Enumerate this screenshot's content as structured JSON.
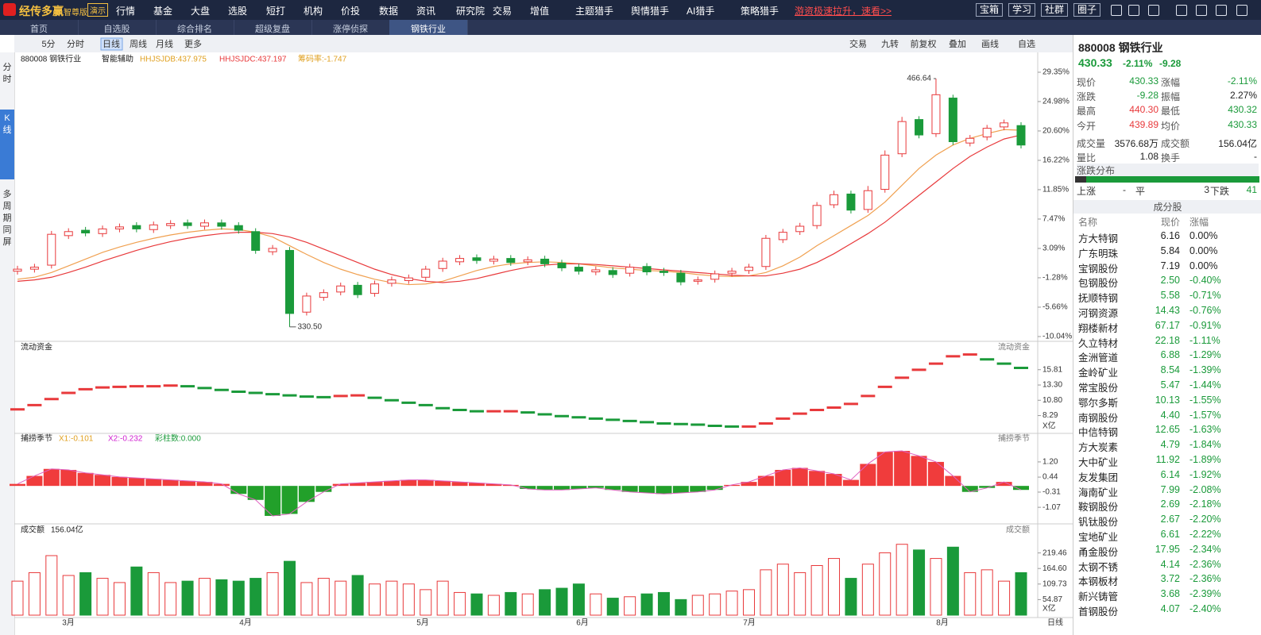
{
  "topbar": {
    "logo": "经传多赢",
    "edition": "智尊版",
    "demo": "演示",
    "menu": [
      "行情",
      "基金",
      "大盘",
      "选股",
      "短打",
      "机构",
      "价投",
      "数据",
      "资讯",
      "研究院",
      "交易",
      "增值",
      "主题猎手",
      "舆情猎手",
      "AI猎手",
      "策略猎手"
    ],
    "promo": "游资极速拉升，速看>>",
    "buttons": [
      "宝箱",
      "学习",
      "社群",
      "圈子"
    ],
    "zoom": "100%"
  },
  "tabs": {
    "items": [
      "首页",
      "自选股",
      "综合排名",
      "超级复盘",
      "涨停侦探",
      "钢铁行业"
    ],
    "active": 5
  },
  "sidebar": {
    "items": [
      "分时",
      "K线",
      "多周期同屏"
    ],
    "active": 1
  },
  "toolbar": {
    "left": [
      "5分",
      "分时",
      "日线",
      "周线",
      "月线",
      "更多"
    ],
    "active": 2,
    "right": [
      "交易",
      "九转",
      "前复权",
      "叠加",
      "画线",
      "自选"
    ]
  },
  "chart_data": [
    {
      "type": "candlestick",
      "title": "880008 钢铁行业",
      "assist": "智能辅助",
      "annotations": [
        "HHJSJDB:437.975",
        "HHJSJDC:437.197",
        "筹码率:-1.747"
      ],
      "high_label": "466.64",
      "low_label": "330.50",
      "ylim": [
        -10.04,
        29.35
      ],
      "yticks": [
        {
          "value": 29.35,
          "label": "29.35%"
        },
        {
          "value": 24.98,
          "label": "24.98%"
        },
        {
          "value": 20.6,
          "label": "20.60%"
        },
        {
          "value": 16.22,
          "label": "16.22%"
        },
        {
          "value": 11.85,
          "label": "11.85%"
        },
        {
          "value": 7.47,
          "label": "7.47%"
        },
        {
          "value": 3.09,
          "label": "3.09%"
        },
        {
          "value": -1.28,
          "label": "-1.28%"
        },
        {
          "value": -5.66,
          "label": "-5.66%"
        },
        {
          "value": -10.04,
          "label": "-10.04%"
        }
      ],
      "up_color": "#e8393b",
      "down_color": "#1a9a3a",
      "open": [
        -0.3,
        0.0,
        0.6,
        5.0,
        5.8,
        5.3,
        6.0,
        6.5,
        5.9,
        6.5,
        6.9,
        6.4,
        6.9,
        6.5,
        5.6,
        2.6,
        2.8,
        -6.4,
        -4.2,
        -3.4,
        -2.4,
        -3.6,
        -2.1,
        -1.7,
        -1.2,
        0.1,
        1.1,
        1.7,
        1.2,
        1.6,
        1.1,
        1.5,
        0.9,
        0.3,
        -0.4,
        -0.2,
        -0.6,
        0.4,
        -0.3,
        -0.6,
        -1.8,
        -1.5,
        -0.6,
        -0.2,
        0.4,
        4.4,
        5.6,
        6.5,
        9.6,
        11.2,
        8.9,
        11.9,
        17.2,
        22.3,
        20.2,
        25.5,
        18.8,
        19.7,
        21.2,
        21.4
      ],
      "high": [
        0.5,
        0.8,
        5.7,
        6.1,
        6.3,
        6.5,
        6.8,
        7.0,
        7.1,
        7.3,
        7.4,
        7.4,
        7.4,
        7.0,
        6.1,
        3.6,
        3.3,
        -3.5,
        -3.0,
        -2.0,
        -1.9,
        -1.7,
        -1.1,
        -0.8,
        0.5,
        1.7,
        2.1,
        2.2,
        2.0,
        2.1,
        1.9,
        2.0,
        1.4,
        0.8,
        0.4,
        0.3,
        0.8,
        0.9,
        0.2,
        -0.1,
        -1.1,
        -0.2,
        0.2,
        0.8,
        5.1,
        6.0,
        6.9,
        10.0,
        11.7,
        11.7,
        12.4,
        17.7,
        22.7,
        22.8,
        28.4,
        26.0,
        20.0,
        21.5,
        22.3,
        21.9
      ],
      "low": [
        -0.8,
        -0.5,
        0.1,
        4.5,
        4.9,
        4.8,
        5.5,
        5.5,
        5.4,
        6.0,
        6.0,
        5.9,
        5.9,
        5.3,
        2.3,
        2.1,
        -8.6,
        -6.9,
        -4.7,
        -3.9,
        -4.3,
        -4.1,
        -2.6,
        -2.2,
        -1.7,
        -0.4,
        0.6,
        0.8,
        0.7,
        0.5,
        0.6,
        0.3,
        -0.3,
        -0.8,
        -0.9,
        -1.3,
        -1.1,
        -0.9,
        -1.0,
        -2.4,
        -2.3,
        -2.0,
        -1.1,
        -0.7,
        -0.1,
        3.9,
        5.1,
        6.0,
        9.1,
        8.3,
        8.4,
        11.4,
        16.7,
        19.5,
        19.7,
        18.5,
        18.3,
        19.2,
        20.7,
        18.0
      ],
      "close": [
        0.0,
        0.3,
        5.2,
        5.6,
        5.4,
        6.0,
        6.3,
        6.0,
        6.6,
        6.8,
        6.5,
        6.9,
        6.4,
        5.8,
        2.8,
        3.1,
        -6.6,
        -4.0,
        -3.5,
        -2.5,
        -3.8,
        -2.2,
        -1.6,
        -1.3,
        0.0,
        1.2,
        1.6,
        1.3,
        1.5,
        1.0,
        1.4,
        0.8,
        0.2,
        -0.3,
        -0.1,
        -0.8,
        0.3,
        -0.4,
        -0.5,
        -1.9,
        -1.6,
        -0.7,
        -0.3,
        0.3,
        4.6,
        5.5,
        6.4,
        9.5,
        11.1,
        8.8,
        11.7,
        17.0,
        22.0,
        20.0,
        26.0,
        19.0,
        19.5,
        21.0,
        21.8,
        18.5
      ],
      "series": [
        {
          "color": "#f0a050",
          "values": [
            -1.5,
            -1.2,
            -0.5,
            0.5,
            1.5,
            2.5,
            3.3,
            4,
            4.6,
            5.1,
            5.5,
            5.8,
            6,
            5.9,
            5.5,
            4.8,
            3.5,
            2.2,
            1,
            0,
            -0.8,
            -1.5,
            -2,
            -2.3,
            -2.2,
            -1.8,
            -1,
            -0.2,
            0.4,
            0.8,
            1,
            1.1,
            1,
            0.8,
            0.5,
            0.2,
            0,
            -0.2,
            -0.3,
            -0.5,
            -0.8,
            -1,
            -1.1,
            -1,
            -0.5,
            0.5,
            1.8,
            3.5,
            5,
            6.5,
            8,
            10,
            12.5,
            15,
            17,
            18.5,
            19.5,
            20.2,
            20.8,
            20.7
          ]
        },
        {
          "color": "#e8393b",
          "values": [
            -1.8,
            -1.6,
            -1.2,
            -0.5,
            0.3,
            1.2,
            2,
            2.8,
            3.5,
            4.1,
            4.6,
            5,
            5.3,
            5.5,
            5.5,
            5.3,
            4.8,
            4,
            3,
            2,
            1,
            0,
            -0.8,
            -1.4,
            -1.8,
            -2,
            -1.8,
            -1.4,
            -0.8,
            -0.2,
            0.3,
            0.6,
            0.8,
            0.8,
            0.7,
            0.5,
            0.3,
            0.1,
            -0.1,
            -0.3,
            -0.5,
            -0.7,
            -0.9,
            -1,
            -1,
            -0.6,
            0,
            1,
            2.3,
            3.8,
            5.3,
            7,
            9,
            11,
            13,
            15,
            16.8,
            18.2,
            19.4,
            20.0
          ]
        }
      ]
    },
    {
      "type": "line",
      "title": "流动资金",
      "unit": "X亿",
      "ylim": [
        5.5,
        20.2
      ],
      "yticks": [
        15.81,
        {
          "value": 13.3,
          "label": "13.30"
        },
        {
          "value": 10.8,
          "label": "10.80"
        },
        8.29
      ],
      "up_color": "#e8393b",
      "down_color": "#1a9a3a",
      "values": [
        9.3,
        10,
        11,
        12,
        12.6,
        12.9,
        13,
        13.1,
        13.1,
        13.2,
        13.1,
        12.8,
        12.5,
        12.2,
        12,
        11.8,
        11.6,
        11.4,
        11.3,
        11.5,
        11.6,
        11.2,
        10.8,
        10.4,
        10,
        9.5,
        9.2,
        9,
        9,
        9,
        8.8,
        8.5,
        8.2,
        8,
        7.8,
        7.6,
        7.4,
        7.2,
        7,
        6.9,
        6.8,
        6.6,
        6.5,
        6.5,
        7,
        7.8,
        8.6,
        9.2,
        9.6,
        10.2,
        11.5,
        13,
        14.5,
        15.8,
        16.8,
        18,
        18.3,
        17.5,
        16.8,
        16.1
      ]
    },
    {
      "type": "bar",
      "title": "捕捞季节",
      "annotations": [
        "X1:-0.101",
        "X2:-0.232",
        "彩柱数:0.000"
      ],
      "ylim": [
        -1.7,
        2.07
      ],
      "yticks": [
        {
          "value": 1.2,
          "label": "1.20"
        },
        0.44,
        -0.31,
        -1.07
      ],
      "up_color": "#f03c3c",
      "down_color": "#22a02a",
      "values": [
        0.1,
        0.5,
        0.85,
        0.8,
        0.65,
        0.55,
        0.45,
        0.4,
        0.35,
        0.3,
        0.25,
        0.2,
        0.1,
        -0.4,
        -0.7,
        -1.5,
        -1.4,
        -0.8,
        -0.3,
        0.1,
        0.15,
        0.2,
        0.25,
        0.3,
        0.3,
        0.25,
        0.2,
        0.15,
        0.1,
        0.05,
        -0.15,
        -0.2,
        -0.2,
        -0.15,
        -0.1,
        -0.2,
        -0.3,
        -0.35,
        -0.4,
        -0.35,
        -0.3,
        -0.2,
        0.05,
        0.2,
        0.5,
        0.8,
        0.9,
        0.75,
        0.6,
        0.3,
        1.1,
        1.7,
        1.75,
        1.5,
        1.2,
        0.5,
        -0.3,
        -0.1,
        0.2,
        -0.2
      ]
    },
    {
      "type": "bar",
      "title": "成交额",
      "annotation": "156.04亿",
      "unit": "X亿",
      "period": "日线",
      "x_labels": [
        "3月",
        "4月",
        "5月",
        "6月",
        "7月",
        "8月"
      ],
      "ylim": [
        0,
        280
      ],
      "yticks": [
        219.46,
        {
          "value": 164.6,
          "label": "164.60"
        },
        109.73,
        54.87
      ],
      "values": [
        120,
        150,
        210,
        140,
        150,
        130,
        115,
        170,
        150,
        115,
        120,
        130,
        125,
        120,
        130,
        150,
        190,
        115,
        130,
        120,
        140,
        110,
        120,
        110,
        90,
        120,
        80,
        75,
        70,
        80,
        75,
        90,
        95,
        110,
        75,
        60,
        65,
        75,
        80,
        55,
        70,
        75,
        85,
        90,
        160,
        180,
        150,
        175,
        200,
        130,
        180,
        220,
        250,
        230,
        200,
        240,
        150,
        160,
        120,
        150
      ]
    }
  ],
  "quote": {
    "code": "880008 钢铁行业",
    "price": "430.33",
    "change_pct": "-2.11%",
    "change": "-9.28",
    "rows": [
      [
        "现价",
        "430.33",
        "涨幅",
        "-2.11%"
      ],
      [
        "涨跌",
        "-9.28",
        "振幅",
        "2.27%"
      ],
      [
        "最高",
        "440.30",
        "最低",
        "430.32"
      ],
      [
        "今开",
        "439.89",
        "均价",
        "430.33"
      ],
      [
        "成交量",
        "3576.68万",
        "成交额",
        "156.04亿"
      ],
      [
        "量比",
        "1.08",
        "换手",
        "-"
      ]
    ],
    "dist_title": "涨跌分布",
    "dist": [
      "上涨",
      "-",
      "平",
      "3",
      "下跌",
      "41"
    ],
    "comp_title": "成分股",
    "comp_header": [
      "名称",
      "现价",
      "涨幅"
    ],
    "comp": [
      [
        "方大特钢",
        "6.16",
        "0.00%"
      ],
      [
        "广东明珠",
        "5.84",
        "0.00%"
      ],
      [
        "宝钢股份",
        "7.19",
        "0.00%"
      ],
      [
        "包钢股份",
        "2.50",
        "-0.40%"
      ],
      [
        "抚顺特钢",
        "5.58",
        "-0.71%"
      ],
      [
        "河钢资源",
        "14.43",
        "-0.76%"
      ],
      [
        "翔楼新材",
        "67.17",
        "-0.91%"
      ],
      [
        "久立特材",
        "22.18",
        "-1.11%"
      ],
      [
        "金洲管道",
        "6.88",
        "-1.29%"
      ],
      [
        "金岭矿业",
        "8.54",
        "-1.39%"
      ],
      [
        "常宝股份",
        "5.47",
        "-1.44%"
      ],
      [
        "鄂尔多斯",
        "10.13",
        "-1.55%"
      ],
      [
        "南钢股份",
        "4.40",
        "-1.57%"
      ],
      [
        "中信特钢",
        "12.65",
        "-1.63%"
      ],
      [
        "方大炭素",
        "4.79",
        "-1.84%"
      ],
      [
        "大中矿业",
        "11.92",
        "-1.89%"
      ],
      [
        "友发集团",
        "6.14",
        "-1.92%"
      ],
      [
        "海南矿业",
        "7.99",
        "-2.08%"
      ],
      [
        "鞍钢股份",
        "2.69",
        "-2.18%"
      ],
      [
        "钒钛股份",
        "2.67",
        "-2.20%"
      ],
      [
        "宝地矿业",
        "6.61",
        "-2.22%"
      ],
      [
        "甬金股份",
        "17.95",
        "-2.34%"
      ],
      [
        "太钢不锈",
        "4.14",
        "-2.36%"
      ],
      [
        "本钢板材",
        "3.72",
        "-2.36%"
      ],
      [
        "新兴铸管",
        "3.68",
        "-2.39%"
      ],
      [
        "首钢股份",
        "4.07",
        "-2.40%"
      ]
    ]
  }
}
